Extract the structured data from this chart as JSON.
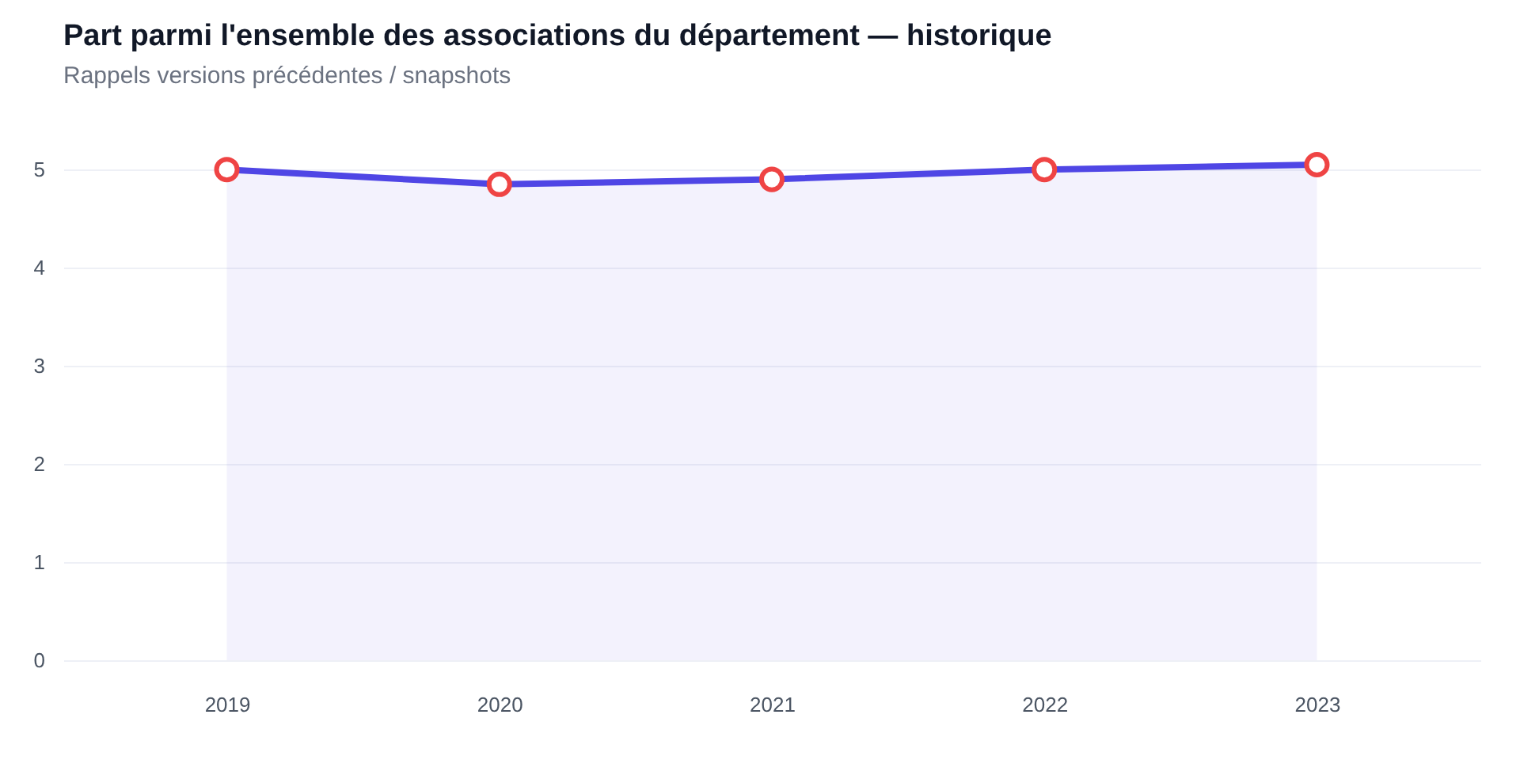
{
  "chart_data": {
    "type": "area",
    "title": "Part parmi l'ensemble des associations du département — historique",
    "subtitle": "Rappels versions précédentes / snapshots",
    "categories": [
      "2019",
      "2020",
      "2021",
      "2022",
      "2023"
    ],
    "series": [
      {
        "color": "#4f46e5",
        "values": [
          5.0,
          4.85,
          4.9,
          5.0,
          5.05
        ],
        "colors": [
          "#ef4444",
          "#ef4444",
          "#ef4444",
          "#ef4444",
          "#ef4444"
        ]
      }
    ],
    "ylim": [
      0,
      5.05
    ],
    "yticks": [
      0,
      1,
      2,
      3,
      4,
      5
    ],
    "grid": "y",
    "marker": "circle"
  }
}
